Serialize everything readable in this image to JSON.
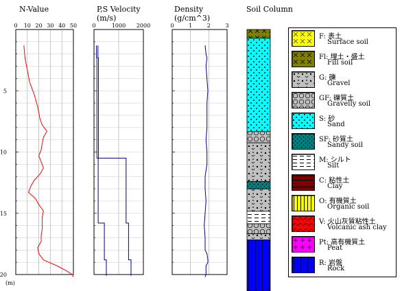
{
  "chart_data": [
    {
      "type": "line",
      "title": "N-Value",
      "xlim": [
        0,
        50
      ],
      "xticks": [
        "0",
        "10",
        "20",
        "30",
        "40",
        "50"
      ],
      "series": [
        {
          "color": "#ff0000",
          "x": [
            7,
            8,
            10,
            12,
            16,
            19,
            21,
            23,
            27,
            24,
            23,
            22,
            20,
            22,
            24,
            21,
            16,
            13,
            11,
            17,
            20,
            24,
            23,
            23,
            23,
            22,
            22,
            19,
            20,
            24,
            36,
            44,
            49,
            50
          ],
          "depth": [
            1.3,
            2.3,
            3.3,
            4.3,
            5.3,
            6.3,
            7.3,
            7.8,
            8.3,
            8.8,
            9.3,
            9.8,
            10.3,
            10.8,
            11.3,
            11.8,
            12.3,
            12.8,
            13.3,
            13.8,
            14.3,
            14.8,
            15.3,
            15.8,
            16.3,
            16.8,
            17.3,
            17.8,
            18.3,
            18.8,
            19.3,
            19.7,
            20.0,
            20.2
          ]
        }
      ]
    },
    {
      "type": "line",
      "title": "P,S Velocity",
      "subtitle": "(m/s)",
      "xlim": [
        0,
        2000
      ],
      "xticks": [
        "0",
        "1000",
        "2000"
      ],
      "series": [
        {
          "color": "#000080",
          "x": [
            160,
            160,
            180,
            180,
            1300,
            1300,
            1400,
            1400,
            1500,
            1500
          ],
          "depth": [
            1.3,
            2.3,
            2.3,
            10.5,
            10.5,
            15.8,
            15.8,
            18.8,
            18.8,
            20.1
          ]
        },
        {
          "color": "#000080",
          "x": [
            100,
            100,
            120,
            120,
            170,
            170,
            420,
            420,
            500,
            500
          ],
          "depth": [
            1.3,
            2.3,
            2.3,
            10.5,
            10.5,
            15.8,
            15.8,
            18.8,
            18.8,
            20.1
          ]
        }
      ]
    },
    {
      "type": "line",
      "title": "Density",
      "subtitle": "(g/cm^3)",
      "xlim": [
        0,
        3
      ],
      "xticks": [
        "0",
        "1",
        "2",
        "3"
      ],
      "series": [
        {
          "color": "#000080",
          "x": [
            1.8,
            1.85,
            1.9,
            1.85,
            1.95,
            1.9,
            1.9,
            1.9,
            1.85,
            1.9,
            1.9,
            1.8,
            1.8,
            1.85,
            1.8,
            1.75,
            1.8,
            1.8,
            1.9,
            1.95,
            1.95,
            1.85,
            1.85,
            1.8
          ],
          "depth": [
            1.3,
            2.0,
            2.3,
            3.0,
            5.0,
            6.0,
            7.0,
            8.0,
            9.0,
            10.0,
            11.0,
            12.0,
            13.0,
            14.0,
            15.0,
            16.0,
            17.0,
            18.0,
            18.3,
            18.8,
            19.0,
            19.3,
            20.0,
            20.2
          ]
        }
      ]
    }
  ],
  "depth_axis": {
    "unit": "(m)",
    "ticks": [
      5,
      10,
      15,
      20
    ]
  },
  "soil_column": {
    "title": "Soil Column",
    "layers": [
      {
        "pattern": "Fl",
        "top": 0.0,
        "bottom": 0.7
      },
      {
        "pattern": "S",
        "top": 0.7,
        "bottom": 8.2
      },
      {
        "pattern": "GF",
        "top": 8.2,
        "bottom": 9.1
      },
      {
        "pattern": "G",
        "top": 9.1,
        "bottom": 12.2
      },
      {
        "pattern": "SF",
        "top": 12.2,
        "bottom": 12.8
      },
      {
        "pattern": "G",
        "top": 12.8,
        "bottom": 14.6
      },
      {
        "pattern": "M",
        "top": 14.6,
        "bottom": 15.6
      },
      {
        "pattern": "GF",
        "top": 15.6,
        "bottom": 16.4
      },
      {
        "pattern": "G",
        "top": 16.4,
        "bottom": 16.9
      },
      {
        "pattern": "R",
        "top": 16.9,
        "bottom": 21.0
      }
    ]
  },
  "legend": [
    {
      "code": "F",
      "jp": "F: 表土",
      "en": "Surface soil",
      "color": "#ffff00"
    },
    {
      "code": "Fl",
      "jp": "Fl: 埋土・盛土",
      "en": "Fill soil",
      "color": "#808000"
    },
    {
      "code": "G",
      "jp": "G: 礫",
      "en": "Gravel",
      "color": "#c0c0c0"
    },
    {
      "code": "GF",
      "jp": "GF: 礫質土",
      "en": "Gravelly soil",
      "color": "#c0c0c0"
    },
    {
      "code": "S",
      "jp": "S: 砂",
      "en": "Sand",
      "color": "#00ffff"
    },
    {
      "code": "SF",
      "jp": "SF: 砂質土",
      "en": "Sandy soil",
      "color": "#008080"
    },
    {
      "code": "M",
      "jp": "M: シルト",
      "en": "Silt",
      "color": "#ffffff"
    },
    {
      "code": "C",
      "jp": "C: 粘性土",
      "en": "Clay",
      "color": "#800000"
    },
    {
      "code": "O",
      "jp": "O: 有機質土",
      "en": "Organic soil",
      "color": "#ffff00"
    },
    {
      "code": "V",
      "jp": "V: 火山灰質粘性土",
      "en": "Volcanic ash clay",
      "color": "#ff0000"
    },
    {
      "code": "Pt",
      "jp": "Pt: 高有機質土",
      "en": "Peat",
      "color": "#ff00ff"
    },
    {
      "code": "R",
      "jp": "R: 岩盤",
      "en": "Rock",
      "color": "#0000ff"
    }
  ]
}
